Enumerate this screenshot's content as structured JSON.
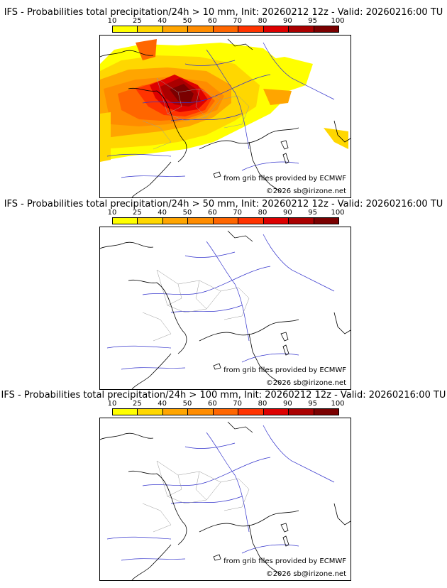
{
  "colorbar": {
    "ticks": [
      "10",
      "25",
      "40",
      "50",
      "60",
      "70",
      "80",
      "90",
      "95",
      "100"
    ],
    "colors": [
      "#ffff00",
      "#ffd700",
      "#ffa500",
      "#ff8c00",
      "#ff6600",
      "#ff3300",
      "#dd0000",
      "#aa0000",
      "#7a0000"
    ]
  },
  "panels": [
    {
      "title": "IFS - Probabilities total precipitation/24h > 10 mm, Init: 20260212 12z - Valid: 20260216:00 TU",
      "credit_source": "from grib files provided by ECMWF",
      "credit_copyright": "©2026 sb@irizone.net",
      "has_precip": true
    },
    {
      "title": "IFS - Probabilities total precipitation/24h > 50 mm, Init: 20260212 12z - Valid: 20260216:00 TU",
      "credit_source": "from grib files provided by ECMWF",
      "credit_copyright": "©2026 sb@irizone.net",
      "has_precip": false
    },
    {
      "title": "IFS - Probabilities total precipitation/24h > 100 mm, Init: 20260212 12z - Valid: 20260216:00 TU",
      "credit_source": "from grib files provided by ECMWF",
      "credit_copyright": "©2026 sb@irizone.net",
      "has_precip": false
    }
  ]
}
